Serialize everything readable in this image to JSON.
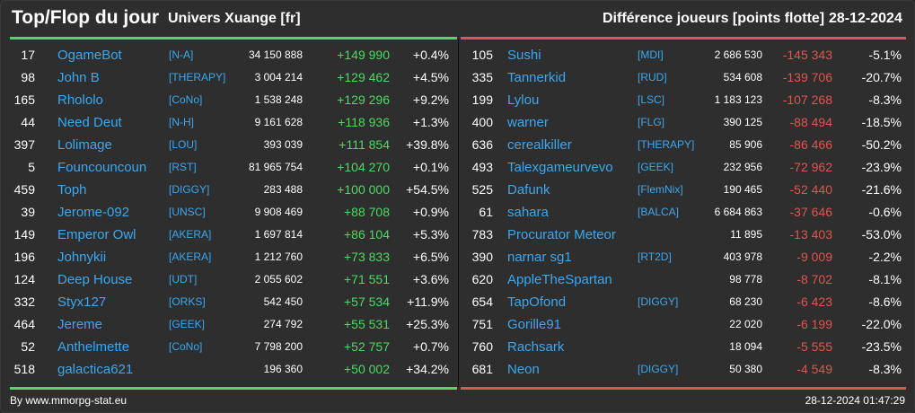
{
  "header": {
    "title": "Top/Flop du jour",
    "universe": "Univers Xuange [fr]",
    "diff_label": "Différence joueurs [points flotte]",
    "date": "28-12-2024"
  },
  "colors": {
    "top_accent": "#4cd964",
    "flop_accent": "#e0554f",
    "name_link": "#3aa8f0",
    "background": "#2e2e2e"
  },
  "top": [
    {
      "rank": "17",
      "name": "OgameBot",
      "alliance": "[N-A]",
      "points": "34 150 888",
      "delta": "+149 990",
      "pct": "+0.4%"
    },
    {
      "rank": "98",
      "name": "John B",
      "alliance": "[THERAPY]",
      "points": "3 004 214",
      "delta": "+129 462",
      "pct": "+4.5%"
    },
    {
      "rank": "165",
      "name": "Rhololo",
      "alliance": "[CoNo]",
      "points": "1 538 248",
      "delta": "+129 296",
      "pct": "+9.2%"
    },
    {
      "rank": "44",
      "name": "Need Deut",
      "alliance": "[N-H]",
      "points": "9 161 628",
      "delta": "+118 936",
      "pct": "+1.3%"
    },
    {
      "rank": "397",
      "name": "Lolimage",
      "alliance": "[LOU]",
      "points": "393 039",
      "delta": "+111 854",
      "pct": "+39.8%"
    },
    {
      "rank": "5",
      "name": "Founcouncoun",
      "alliance": "[RST]",
      "points": "81 965 754",
      "delta": "+104 270",
      "pct": "+0.1%"
    },
    {
      "rank": "459",
      "name": "Toph",
      "alliance": "[DIGGY]",
      "points": "283 488",
      "delta": "+100 000",
      "pct": "+54.5%"
    },
    {
      "rank": "39",
      "name": "Jerome-092",
      "alliance": "[UNSC]",
      "points": "9 908 469",
      "delta": "+88 708",
      "pct": "+0.9%"
    },
    {
      "rank": "149",
      "name": "Emperor Owl",
      "alliance": "[AKERA]",
      "points": "1 697 814",
      "delta": "+86 104",
      "pct": "+5.3%"
    },
    {
      "rank": "196",
      "name": "Johnykii",
      "alliance": "[AKERA]",
      "points": "1 212 760",
      "delta": "+73 833",
      "pct": "+6.5%"
    },
    {
      "rank": "124",
      "name": "Deep House",
      "alliance": "[UDT]",
      "points": "2 055 602",
      "delta": "+71 551",
      "pct": "+3.6%"
    },
    {
      "rank": "332",
      "name": "Styx127",
      "alliance": "[ORKS]",
      "points": "542 450",
      "delta": "+57 534",
      "pct": "+11.9%"
    },
    {
      "rank": "464",
      "name": "Jereme",
      "alliance": "[GEEK]",
      "points": "274 792",
      "delta": "+55 531",
      "pct": "+25.3%"
    },
    {
      "rank": "52",
      "name": "Anthelmette",
      "alliance": "[CoNo]",
      "points": "7 798 200",
      "delta": "+52 757",
      "pct": "+0.7%"
    },
    {
      "rank": "518",
      "name": "galactica621",
      "alliance": "",
      "points": "196 360",
      "delta": "+50 002",
      "pct": "+34.2%"
    }
  ],
  "flop": [
    {
      "rank": "105",
      "name": "Sushi",
      "alliance": "[MDI]",
      "points": "2 686 530",
      "delta": "-145 343",
      "pct": "-5.1%"
    },
    {
      "rank": "335",
      "name": "Tannerkid",
      "alliance": "[RUD]",
      "points": "534 608",
      "delta": "-139 706",
      "pct": "-20.7%"
    },
    {
      "rank": "199",
      "name": "Lylou",
      "alliance": "[LSC]",
      "points": "1 183 123",
      "delta": "-107 268",
      "pct": "-8.3%"
    },
    {
      "rank": "400",
      "name": "warner",
      "alliance": "[FLG]",
      "points": "390 125",
      "delta": "-88 494",
      "pct": "-18.5%"
    },
    {
      "rank": "636",
      "name": "cerealkiller",
      "alliance": "[THERAPY]",
      "points": "85 906",
      "delta": "-86 466",
      "pct": "-50.2%"
    },
    {
      "rank": "493",
      "name": "Talexgameurvevo",
      "alliance": "[GEEK]",
      "points": "232 956",
      "delta": "-72 962",
      "pct": "-23.9%"
    },
    {
      "rank": "525",
      "name": "Dafunk",
      "alliance": "[FlemNix]",
      "points": "190 465",
      "delta": "-52 440",
      "pct": "-21.6%"
    },
    {
      "rank": "61",
      "name": "sahara",
      "alliance": "[BALCA]",
      "points": "6 684 863",
      "delta": "-37 646",
      "pct": "-0.6%"
    },
    {
      "rank": "783",
      "name": "Procurator Meteor",
      "alliance": "",
      "points": "11 895",
      "delta": "-13 403",
      "pct": "-53.0%"
    },
    {
      "rank": "390",
      "name": "narnar sg1",
      "alliance": "[RT2D]",
      "points": "403 978",
      "delta": "-9 009",
      "pct": "-2.2%"
    },
    {
      "rank": "620",
      "name": "AppleTheSpartan",
      "alliance": "",
      "points": "98 778",
      "delta": "-8 702",
      "pct": "-8.1%"
    },
    {
      "rank": "654",
      "name": "TapOfond",
      "alliance": "[DIGGY]",
      "points": "68 230",
      "delta": "-6 423",
      "pct": "-8.6%"
    },
    {
      "rank": "751",
      "name": "Gorille91",
      "alliance": "",
      "points": "22 020",
      "delta": "-6 199",
      "pct": "-22.0%"
    },
    {
      "rank": "760",
      "name": "Rachsark",
      "alliance": "",
      "points": "18 094",
      "delta": "-5 555",
      "pct": "-23.5%"
    },
    {
      "rank": "681",
      "name": "Neon",
      "alliance": "[DIGGY]",
      "points": "50 380",
      "delta": "-4 549",
      "pct": "-8.3%"
    }
  ],
  "footer": {
    "credit": "By www.mmorpg-stat.eu",
    "timestamp": "28-12-2024 01:47:29"
  }
}
